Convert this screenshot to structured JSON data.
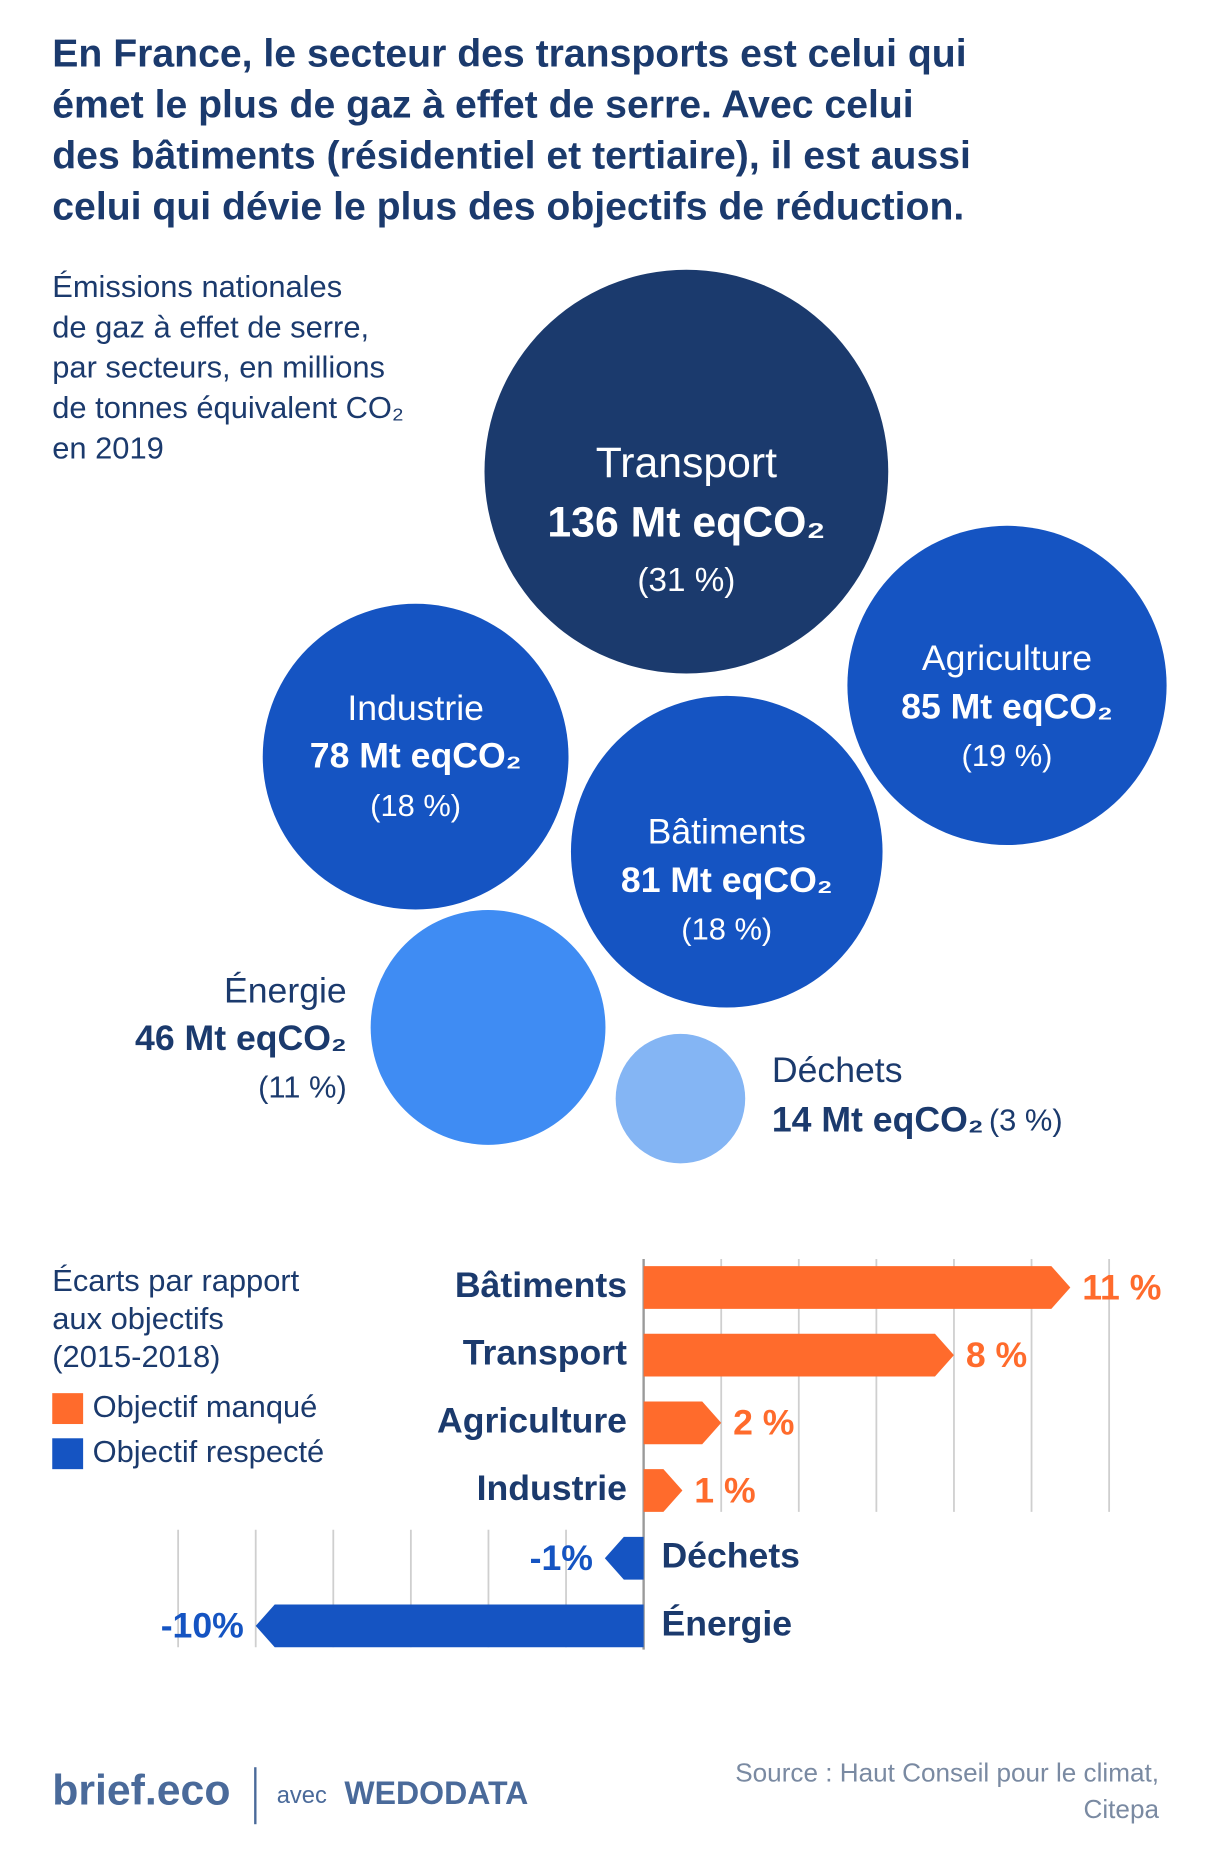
{
  "title": [
    "En France, le secteur des transports est celui qui",
    "émet le plus de gaz à effet de serre. Avec celui",
    "des bâtiments (résidentiel et tertiaire), il est aussi",
    "celui qui dévie le plus des objectifs de réduction."
  ],
  "chart_data": [
    {
      "type": "bubble",
      "subtitle": [
        "Émissions nationales",
        "de gaz à effet de serre,",
        "par secteurs, en millions",
        "de tonnes équivalent CO₂",
        "en 2019"
      ],
      "categories": [
        "Transport",
        "Agriculture",
        "Industrie",
        "Bâtiments",
        "Énergie",
        "Déchets"
      ],
      "values": [
        136,
        85,
        78,
        81,
        46,
        14
      ],
      "value_labels": [
        "136 Mt eqCO₂",
        "85 Mt eqCO₂",
        "78 Mt eqCO₂",
        "81 Mt eqCO₂",
        "46 Mt eqCO₂",
        "14 Mt eqCO₂"
      ],
      "shares": [
        31,
        19,
        18,
        18,
        11,
        3
      ],
      "share_labels": [
        "(31 %)",
        "(19 %)",
        "(18 %)",
        "(18 %)",
        "(11 %)",
        "(3 %)"
      ],
      "colors": [
        "#1b3a6d",
        "#1554c2",
        "#1554c2",
        "#1554c2",
        "#3f8cf3",
        "#84b5f4"
      ]
    },
    {
      "type": "bar",
      "orientation": "horizontal",
      "subtitle": [
        "Écarts par rapport",
        "aux objectifs",
        "(2015-2018)"
      ],
      "categories": [
        "Bâtiments",
        "Transport",
        "Agriculture",
        "Industrie",
        "Déchets",
        "Énergie"
      ],
      "series": [
        {
          "name": "Objectif manqué",
          "color": "#ff6b2c",
          "values": [
            11,
            8,
            2,
            1,
            null,
            null
          ],
          "value_labels": [
            "11 %",
            "8 %",
            "2 %",
            "1 %",
            null,
            null
          ]
        },
        {
          "name": "Objectif respecté",
          "color": "#1554c2",
          "values": [
            null,
            null,
            null,
            null,
            -1,
            -10
          ],
          "value_labels": [
            null,
            null,
            null,
            null,
            "-1%",
            "-10%"
          ]
        }
      ],
      "xlim": [
        -12,
        12
      ],
      "xticks": [
        -12,
        -10,
        -8,
        -6,
        -4,
        -2,
        2,
        4,
        6,
        8,
        10,
        12
      ],
      "grid": true
    }
  ],
  "footer": {
    "brand": "brief.eco",
    "with": "avec",
    "partner": "WEDODATA",
    "source": [
      "Source : Haut Conseil pour le climat,",
      "Citepa"
    ]
  }
}
